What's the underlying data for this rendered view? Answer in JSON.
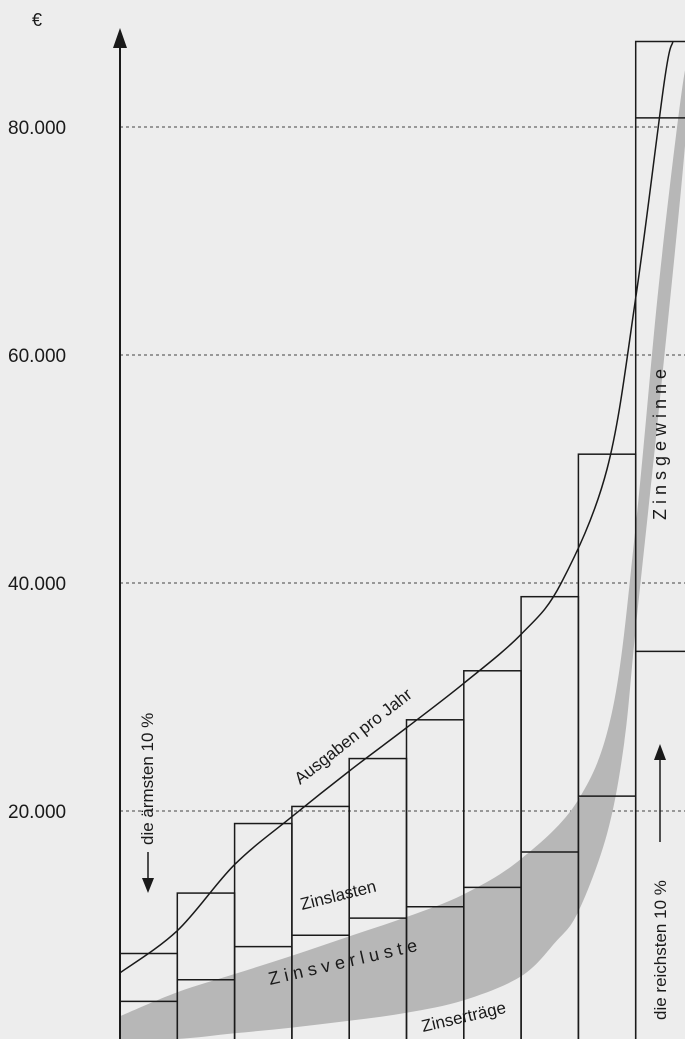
{
  "chart_data": {
    "type": "bar",
    "y_unit": "€",
    "yticks": [
      {
        "value": 20000,
        "label": "20.000"
      },
      {
        "value": 40000,
        "label": "40.000"
      },
      {
        "value": 60000,
        "label": "60.000"
      },
      {
        "value": 80000,
        "label": "80.000"
      }
    ],
    "ylim": [
      0,
      88000
    ],
    "gridlines": "dashed at labeled ticks",
    "deciles": [
      {
        "total": 7500,
        "inner": 3300
      },
      {
        "total": 12800,
        "inner": 5200
      },
      {
        "total": 18900,
        "inner": 8100
      },
      {
        "total": 20400,
        "inner": 9100
      },
      {
        "total": 24600,
        "inner": 10600
      },
      {
        "total": 28000,
        "inner": 11600
      },
      {
        "total": 32300,
        "inner": 13300
      },
      {
        "total": 38800,
        "inner": 16400
      },
      {
        "total": 51300,
        "inner": 21300
      },
      {
        "total": 87500,
        "inner": 80800,
        "inner2": 34000
      }
    ],
    "expenses_curve": [
      {
        "x": 0.0,
        "y": 5800
      },
      {
        "x": 1.0,
        "y": 9500
      },
      {
        "x": 2.0,
        "y": 15300
      },
      {
        "x": 3.0,
        "y": 19500
      },
      {
        "x": 4.0,
        "y": 23500
      },
      {
        "x": 5.0,
        "y": 27300
      },
      {
        "x": 6.0,
        "y": 31200
      },
      {
        "x": 7.0,
        "y": 35500
      },
      {
        "x": 7.7,
        "y": 40000
      },
      {
        "x": 8.5,
        "y": 50000
      },
      {
        "x": 9.0,
        "y": 65000
      },
      {
        "x": 9.5,
        "y": 84000
      },
      {
        "x": 9.65,
        "y": 87500
      }
    ],
    "interest_band": {
      "upper": [
        {
          "x": 0.0,
          "y": 2000
        },
        {
          "x": 1.0,
          "y": 4100
        },
        {
          "x": 2.0,
          "y": 5700
        },
        {
          "x": 3.0,
          "y": 7300
        },
        {
          "x": 4.0,
          "y": 9000
        },
        {
          "x": 5.0,
          "y": 10700
        },
        {
          "x": 6.0,
          "y": 12700
        },
        {
          "x": 7.0,
          "y": 15800
        },
        {
          "x": 8.0,
          "y": 21000
        },
        {
          "x": 8.6,
          "y": 29000
        },
        {
          "x": 9.0,
          "y": 45000
        },
        {
          "x": 9.4,
          "y": 66000
        },
        {
          "x": 9.8,
          "y": 83000
        },
        {
          "x": 10.0,
          "y": 88000
        }
      ],
      "lower": [
        {
          "x": 0.0,
          "y": 0
        },
        {
          "x": 1.0,
          "y": 0
        },
        {
          "x": 2.0,
          "y": 500
        },
        {
          "x": 3.0,
          "y": 1000
        },
        {
          "x": 4.0,
          "y": 1600
        },
        {
          "x": 5.0,
          "y": 2300
        },
        {
          "x": 6.0,
          "y": 3400
        },
        {
          "x": 7.0,
          "y": 5500
        },
        {
          "x": 7.6,
          "y": 8500
        },
        {
          "x": 8.0,
          "y": 11200
        },
        {
          "x": 8.5,
          "y": 18000
        },
        {
          "x": 8.8,
          "y": 26000
        },
        {
          "x": 9.0,
          "y": 36000
        },
        {
          "x": 9.4,
          "y": 55000
        },
        {
          "x": 9.8,
          "y": 75000
        },
        {
          "x": 10.0,
          "y": 87000
        }
      ],
      "color": "#b7b7b7"
    },
    "labels": {
      "expenses": "Ausgaben pro Jahr",
      "burden": "Zinslasten",
      "losses": "Z i n s v e r l u s t e",
      "income": "Zinserträge",
      "gains": "Z i n s g e w i n n e",
      "poorest": "die ärmsten 10 %",
      "richest": "die reichsten 10 %"
    }
  }
}
